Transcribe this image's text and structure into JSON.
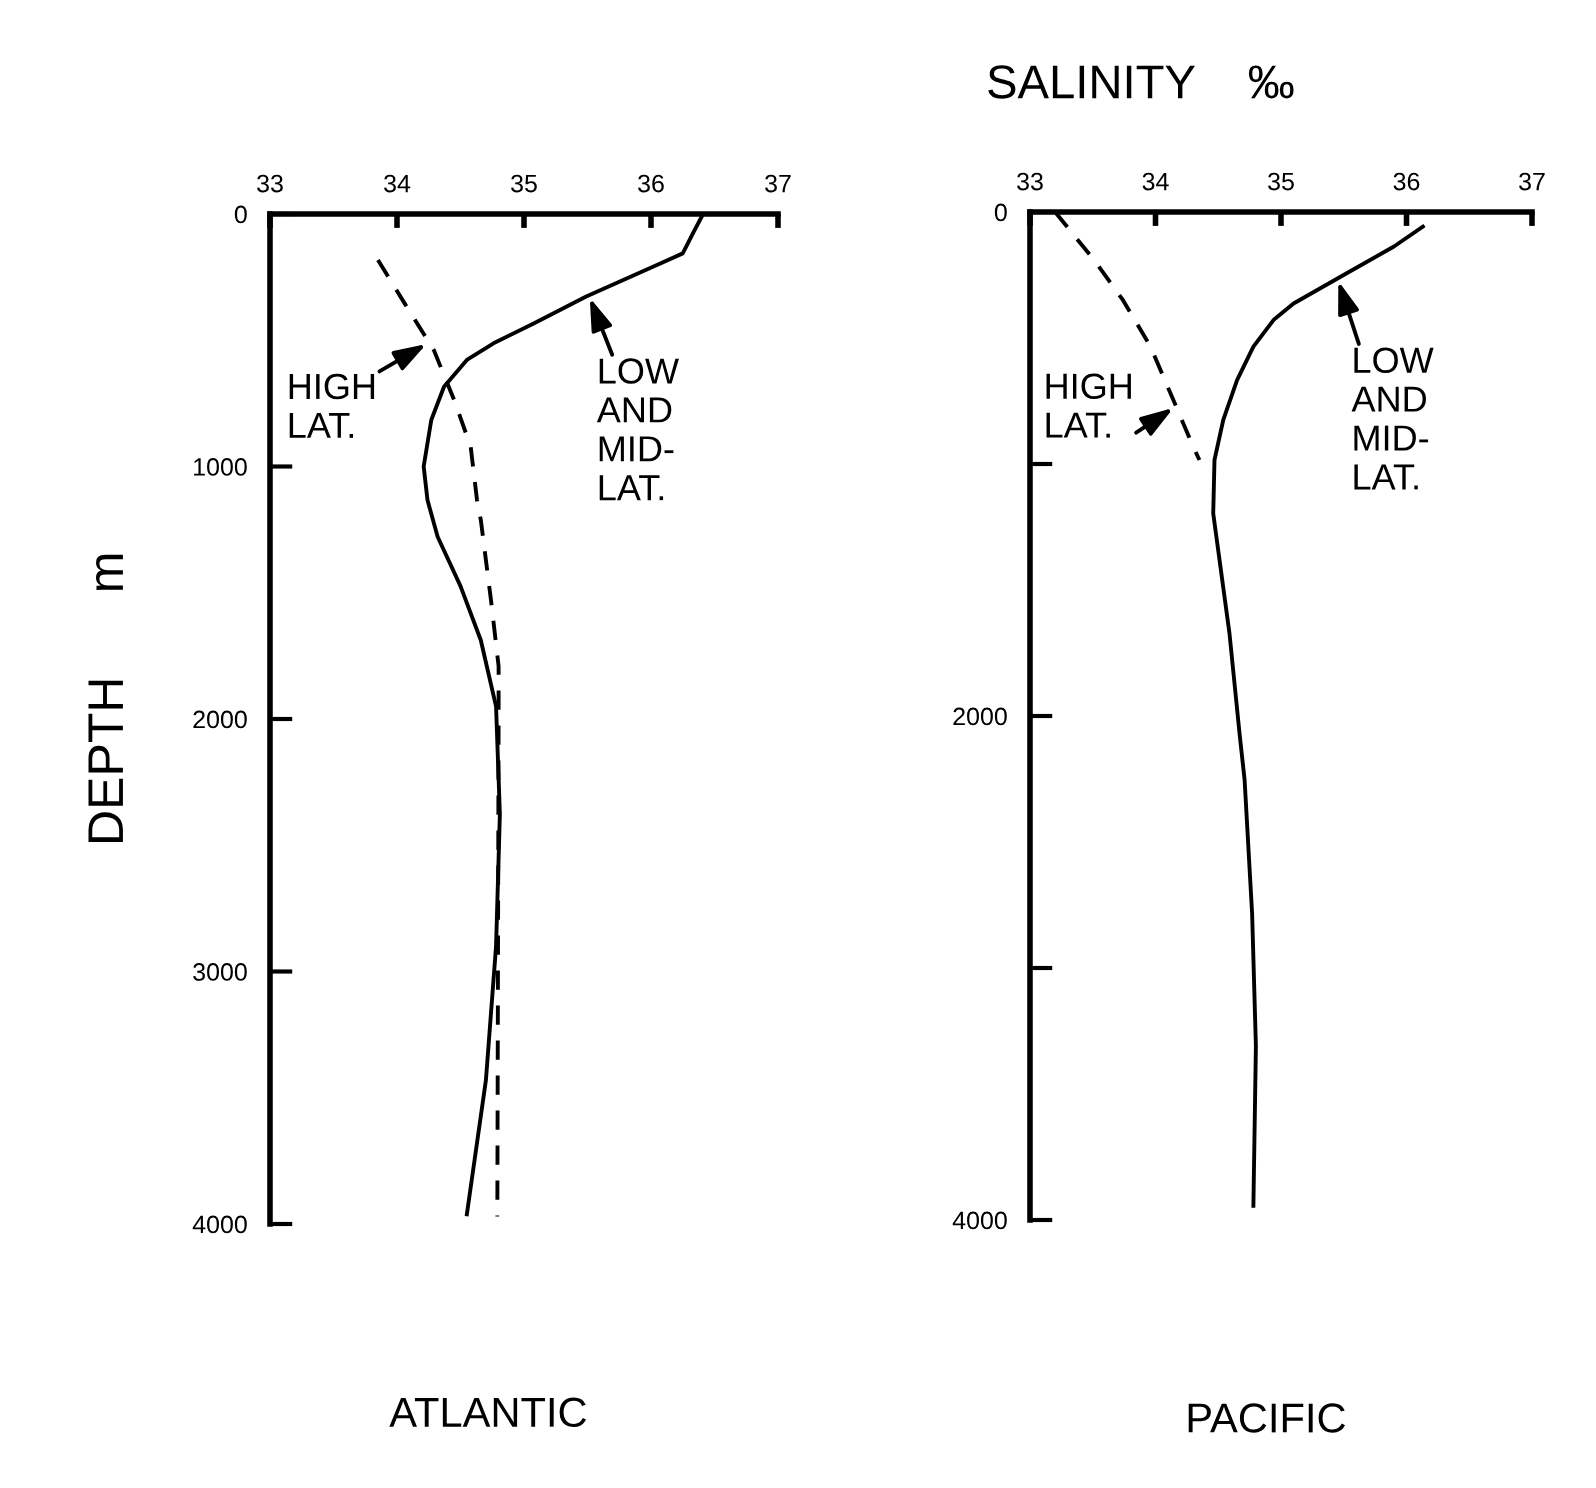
{
  "chart_data": [
    {
      "type": "line",
      "title": "ATLANTIC",
      "ylabel": "DEPTH      m",
      "xlim": [
        33,
        37
      ],
      "xticks": [
        33,
        34,
        35,
        36,
        37
      ],
      "ylim": [
        4000,
        0
      ],
      "yticks": [
        0,
        1000,
        2000,
        3000,
        4000
      ],
      "series": [
        {
          "color": "#000000",
          "line_style": "solid",
          "x": [
            36.41,
            36.33,
            36.25,
            36.02,
            35.49,
            35.08,
            34.76,
            34.55,
            34.37,
            34.27,
            34.21,
            34.24,
            34.32,
            34.5,
            34.66,
            34.78,
            34.81,
            34.78,
            34.7,
            34.55
          ],
          "values": [
            0,
            77,
            156,
            208,
            327,
            433,
            512,
            578,
            684,
            816,
            1000,
            1133,
            1278,
            1474,
            1688,
            1950,
            2377,
            2900,
            3431,
            3962
          ]
        },
        {
          "color": "#000000",
          "line_style": "dashed",
          "x": [
            33.85,
            34.06,
            34.29,
            34.45,
            34.58,
            34.63,
            34.66,
            34.74,
            34.8,
            34.8,
            34.79
          ],
          "values": [
            182,
            354,
            539,
            737,
            921,
            1133,
            1212,
            1529,
            1791,
            2005,
            3970
          ]
        }
      ],
      "annotations": [
        {
          "text": "HIGH\nLAT.",
          "x": 34.25,
          "y": 510
        },
        {
          "text": "LOW\nAND\nMID-\nLAT.",
          "x": 35.51,
          "y": 322
        }
      ]
    },
    {
      "type": "line",
      "title": "PACIFIC",
      "xlabel": "SALINITY    ‰",
      "xlim": [
        33,
        37
      ],
      "xticks": [
        33,
        34,
        35,
        36,
        37
      ],
      "ylim": [
        4000,
        0
      ],
      "yticks": [
        0,
        {
          "value": 1000,
          "label": null
        },
        2000,
        {
          "value": 3000,
          "label": null
        },
        4000
      ],
      "series": [
        {
          "color": "#000000",
          "line_style": "solid",
          "x": [
            36.13,
            35.9,
            35.52,
            35.1,
            34.94,
            34.78,
            34.65,
            34.54,
            34.47,
            34.46,
            34.59,
            34.67,
            34.71,
            34.77,
            34.8,
            34.78
          ],
          "values": [
            58,
            137,
            244,
            363,
            429,
            534,
            667,
            825,
            984,
            1196,
            1675,
            2071,
            2254,
            2786,
            3310,
            3944
          ]
        },
        {
          "color": "#000000",
          "line_style": "dashed",
          "x": [
            33.2,
            33.51,
            33.74,
            33.96,
            34.12,
            34.3,
            34.35
          ],
          "values": [
            0,
            190,
            349,
            534,
            720,
            931,
            984
          ]
        }
      ],
      "annotations": [
        {
          "text": "HIGH\nLAT.",
          "x": 34.16,
          "y": 772
        },
        {
          "text": "LOW\nAND\nMID-\nLAT.",
          "x": 35.45,
          "y": 264
        }
      ]
    }
  ]
}
